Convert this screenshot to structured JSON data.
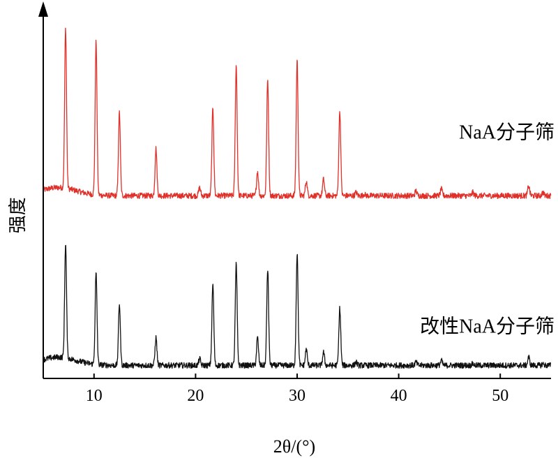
{
  "chart_data": {
    "type": "line",
    "xlabel": "2θ/(°)",
    "ylabel": "强度",
    "xlim": [
      5,
      55
    ],
    "ylim": [
      0,
      2.2
    ],
    "xticks": [
      10,
      20,
      30,
      40,
      50
    ],
    "xtick_labels": [
      "10",
      "20",
      "30",
      "40",
      "50"
    ],
    "yticks_shown": false,
    "grid": false,
    "legend": "none",
    "series": [
      {
        "name": "NaA分子筛",
        "color": "#e0302a",
        "baseline": 1.12,
        "peaks": [
          {
            "x": 7.2,
            "y": 2.1
          },
          {
            "x": 10.2,
            "y": 2.06
          },
          {
            "x": 12.5,
            "y": 1.63
          },
          {
            "x": 16.1,
            "y": 1.41
          },
          {
            "x": 20.4,
            "y": 1.17
          },
          {
            "x": 21.7,
            "y": 1.66
          },
          {
            "x": 24.0,
            "y": 1.92
          },
          {
            "x": 26.1,
            "y": 1.27
          },
          {
            "x": 27.1,
            "y": 1.83
          },
          {
            "x": 30.0,
            "y": 1.95
          },
          {
            "x": 30.9,
            "y": 1.21
          },
          {
            "x": 32.6,
            "y": 1.22
          },
          {
            "x": 34.2,
            "y": 1.64
          },
          {
            "x": 35.8,
            "y": 1.14
          },
          {
            "x": 36.6,
            "y": 1.13
          },
          {
            "x": 41.7,
            "y": 1.15
          },
          {
            "x": 44.2,
            "y": 1.16
          },
          {
            "x": 47.3,
            "y": 1.14
          },
          {
            "x": 52.8,
            "y": 1.18
          },
          {
            "x": 54.2,
            "y": 1.14
          }
        ]
      },
      {
        "name": "改性NaA分子筛",
        "color": "#111111",
        "baseline": 0.08,
        "peaks": [
          {
            "x": 7.2,
            "y": 0.78
          },
          {
            "x": 10.2,
            "y": 0.64
          },
          {
            "x": 12.5,
            "y": 0.46
          },
          {
            "x": 16.1,
            "y": 0.25
          },
          {
            "x": 20.4,
            "y": 0.12
          },
          {
            "x": 21.7,
            "y": 0.58
          },
          {
            "x": 24.0,
            "y": 0.7
          },
          {
            "x": 26.1,
            "y": 0.25
          },
          {
            "x": 27.1,
            "y": 0.67
          },
          {
            "x": 30.0,
            "y": 0.77
          },
          {
            "x": 30.9,
            "y": 0.18
          },
          {
            "x": 32.6,
            "y": 0.16
          },
          {
            "x": 34.2,
            "y": 0.43
          },
          {
            "x": 35.8,
            "y": 0.1
          },
          {
            "x": 41.7,
            "y": 0.1
          },
          {
            "x": 44.2,
            "y": 0.11
          },
          {
            "x": 47.3,
            "y": 0.09
          },
          {
            "x": 52.8,
            "y": 0.13
          },
          {
            "x": 54.2,
            "y": 0.09
          }
        ]
      }
    ]
  }
}
